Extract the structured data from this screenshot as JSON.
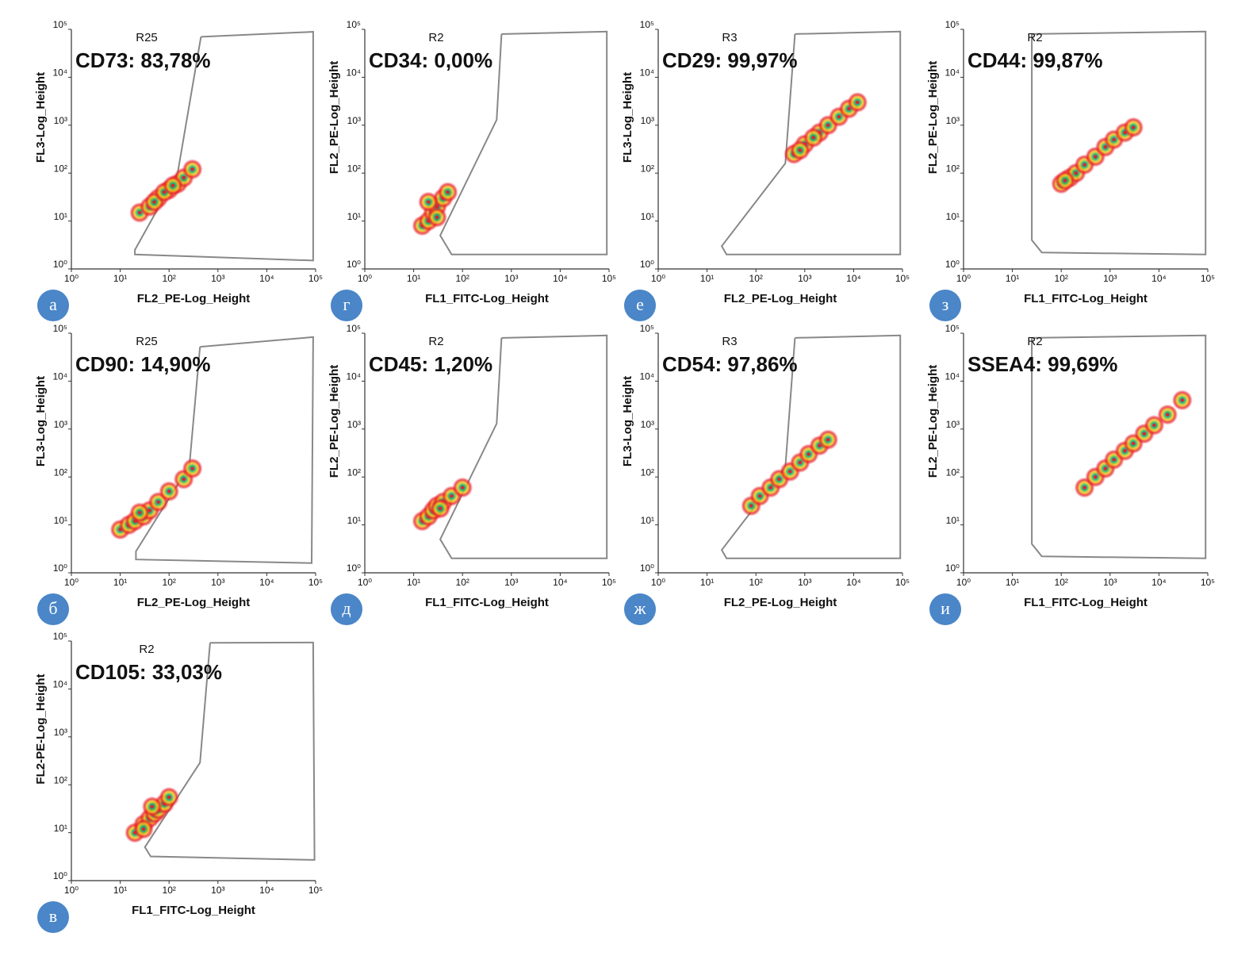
{
  "chart_data": [
    {
      "type": "scatter",
      "panel_label": "а",
      "gate_label": "R25",
      "annotation": "CD73: 83,78%",
      "x_label": "FL2_PE-Log_Height",
      "y_label": "FL3-Log_Height",
      "log_scale": true,
      "color": "#e8202a",
      "x": [
        25,
        40,
        60,
        100,
        150,
        200,
        300,
        50,
        80,
        120
      ],
      "values": [
        15,
        20,
        30,
        45,
        60,
        80,
        120,
        25,
        40,
        55
      ],
      "gate_x": [
        450,
        89000,
        89000,
        20,
        20,
        150,
        450
      ],
      "gate_y": [
        70000,
        89000,
        1.5,
        2,
        2.5,
        100,
        70000
      ],
      "xlim": [
        1,
        100000
      ],
      "ylim": [
        1,
        100000
      ],
      "xticks": [
        {
          "value": 1,
          "label": "10⁰"
        },
        {
          "value": 10,
          "label": "10¹"
        },
        {
          "value": 100,
          "label": "10²"
        },
        {
          "value": 1000,
          "label": "10³"
        },
        {
          "value": 10000,
          "label": "10⁴"
        },
        {
          "value": 100000,
          "label": "10⁵"
        }
      ],
      "yticks": [
        {
          "value": 1,
          "label": "10⁰"
        },
        {
          "value": 10,
          "label": "10¹"
        },
        {
          "value": 100,
          "label": "10²"
        },
        {
          "value": 1000,
          "label": "10³"
        },
        {
          "value": 10000,
          "label": "10⁴"
        },
        {
          "value": 100000,
          "label": "10⁵"
        }
      ]
    },
    {
      "type": "scatter",
      "panel_label": "г",
      "gate_label": "R2",
      "annotation": "CD34: 0,00%",
      "x_label": "FL1_FITC-Log_Height",
      "y_label": "FL2_PE-Log_Height",
      "log_scale": true,
      "color": "#e8202a",
      "x": [
        15,
        20,
        25,
        30,
        40,
        50,
        20,
        30
      ],
      "values": [
        8,
        10,
        15,
        20,
        30,
        40,
        25,
        12
      ],
      "gate_x": [
        630,
        90000,
        90000,
        60,
        35,
        500,
        630
      ],
      "gate_y": [
        80000,
        90000,
        2,
        2,
        5,
        1300,
        80000
      ],
      "xlim": [
        1,
        100000
      ],
      "ylim": [
        1,
        100000
      ],
      "xticks": [
        {
          "value": 1,
          "label": "10⁰"
        },
        {
          "value": 10,
          "label": "10¹"
        },
        {
          "value": 100,
          "label": "10²"
        },
        {
          "value": 1000,
          "label": "10³"
        },
        {
          "value": 10000,
          "label": "10⁴"
        },
        {
          "value": 100000,
          "label": "10⁵"
        }
      ],
      "yticks": [
        {
          "value": 1,
          "label": "10⁰"
        },
        {
          "value": 10,
          "label": "10¹"
        },
        {
          "value": 100,
          "label": "10²"
        },
        {
          "value": 1000,
          "label": "10³"
        },
        {
          "value": 10000,
          "label": "10⁴"
        },
        {
          "value": 100000,
          "label": "10⁵"
        }
      ]
    },
    {
      "type": "scatter",
      "panel_label": "е",
      "gate_label": "R3",
      "annotation": "CD29: 99,97%",
      "x_label": "FL2_PE-Log_Height",
      "y_label": "FL3-Log_Height",
      "log_scale": true,
      "color": "#e8202a",
      "x": [
        600,
        1000,
        2000,
        3000,
        5000,
        8000,
        12000,
        800,
        1500
      ],
      "values": [
        250,
        400,
        700,
        1000,
        1500,
        2200,
        3000,
        300,
        550
      ],
      "gate_x": [
        630,
        90000,
        90000,
        25,
        20,
        400,
        630
      ],
      "gate_y": [
        80000,
        90000,
        2,
        2,
        3,
        160,
        80000
      ],
      "xlim": [
        1,
        100000
      ],
      "ylim": [
        1,
        100000
      ],
      "xticks": [
        {
          "value": 1,
          "label": "10⁰"
        },
        {
          "value": 10,
          "label": "10¹"
        },
        {
          "value": 100,
          "label": "10²"
        },
        {
          "value": 1000,
          "label": "10³"
        },
        {
          "value": 10000,
          "label": "10⁴"
        },
        {
          "value": 100000,
          "label": "10⁵"
        }
      ],
      "yticks": [
        {
          "value": 1,
          "label": "10⁰"
        },
        {
          "value": 10,
          "label": "10¹"
        },
        {
          "value": 100,
          "label": "10²"
        },
        {
          "value": 1000,
          "label": "10³"
        },
        {
          "value": 10000,
          "label": "10⁴"
        },
        {
          "value": 100000,
          "label": "10⁵"
        }
      ]
    },
    {
      "type": "scatter",
      "panel_label": "з",
      "gate_label": "R2",
      "annotation": "CD44: 99,87%",
      "x_label": "FL1_FITC-Log_Height",
      "y_label": "FL2_PE-Log_Height",
      "log_scale": true,
      "color": "#e8202a",
      "x": [
        100,
        150,
        200,
        300,
        500,
        800,
        1200,
        2000,
        3000,
        120
      ],
      "values": [
        60,
        80,
        100,
        150,
        220,
        350,
        500,
        700,
        900,
        70
      ],
      "gate_x": [
        25,
        90000,
        90000,
        40,
        25,
        25,
        25
      ],
      "gate_y": [
        80000,
        90000,
        2,
        2.2,
        4,
        1000,
        80000
      ],
      "xlim": [
        1,
        100000
      ],
      "ylim": [
        1,
        100000
      ],
      "xticks": [
        {
          "value": 1,
          "label": "10⁰"
        },
        {
          "value": 10,
          "label": "10¹"
        },
        {
          "value": 100,
          "label": "10²"
        },
        {
          "value": 1000,
          "label": "10³"
        },
        {
          "value": 10000,
          "label": "10⁴"
        },
        {
          "value": 100000,
          "label": "10⁵"
        }
      ],
      "yticks": [
        {
          "value": 1,
          "label": "10⁰"
        },
        {
          "value": 10,
          "label": "10¹"
        },
        {
          "value": 100,
          "label": "10²"
        },
        {
          "value": 1000,
          "label": "10³"
        },
        {
          "value": 10000,
          "label": "10⁴"
        },
        {
          "value": 100000,
          "label": "10⁵"
        }
      ]
    },
    {
      "type": "scatter",
      "panel_label": "б",
      "gate_label": "R25",
      "annotation": "CD90: 14,90%",
      "x_label": "FL2_PE-Log_Height",
      "y_label": "FL3-Log_Height",
      "log_scale": true,
      "color": "#e8202a",
      "x": [
        10,
        15,
        20,
        30,
        40,
        60,
        100,
        200,
        300,
        25
      ],
      "values": [
        8,
        10,
        12,
        15,
        20,
        30,
        50,
        90,
        150,
        18
      ],
      "gate_x": [
        430,
        89000,
        83000,
        21,
        21,
        260,
        430
      ],
      "gate_y": [
        52000,
        83000,
        1.6,
        1.9,
        2.8,
        170,
        52000
      ],
      "xlim": [
        1,
        100000
      ],
      "ylim": [
        1,
        100000
      ],
      "xticks": [
        {
          "value": 1,
          "label": "10⁰"
        },
        {
          "value": 10,
          "label": "10¹"
        },
        {
          "value": 100,
          "label": "10²"
        },
        {
          "value": 1000,
          "label": "10³"
        },
        {
          "value": 10000,
          "label": "10⁴"
        },
        {
          "value": 100000,
          "label": "10⁵"
        }
      ],
      "yticks": [
        {
          "value": 1,
          "label": "10⁰"
        },
        {
          "value": 10,
          "label": "10¹"
        },
        {
          "value": 100,
          "label": "10²"
        },
        {
          "value": 1000,
          "label": "10³"
        },
        {
          "value": 10000,
          "label": "10⁴"
        },
        {
          "value": 100000,
          "label": "10⁵"
        }
      ]
    },
    {
      "type": "scatter",
      "panel_label": "д",
      "gate_label": "R2",
      "annotation": "CD45: 1,20%",
      "x_label": "FL1_FITC-Log_Height",
      "y_label": "FL2_PE-Log_Height",
      "log_scale": true,
      "color": "#e8202a",
      "x": [
        15,
        20,
        25,
        30,
        40,
        60,
        100,
        35
      ],
      "values": [
        12,
        15,
        20,
        25,
        30,
        40,
        60,
        22
      ],
      "gate_x": [
        630,
        90000,
        90000,
        60,
        35,
        500,
        630
      ],
      "gate_y": [
        80000,
        90000,
        2,
        2,
        5,
        1300,
        80000
      ],
      "xlim": [
        1,
        100000
      ],
      "ylim": [
        1,
        100000
      ],
      "xticks": [
        {
          "value": 1,
          "label": "10⁰"
        },
        {
          "value": 10,
          "label": "10¹"
        },
        {
          "value": 100,
          "label": "10²"
        },
        {
          "value": 1000,
          "label": "10³"
        },
        {
          "value": 10000,
          "label": "10⁴"
        },
        {
          "value": 100000,
          "label": "10⁵"
        }
      ],
      "yticks": [
        {
          "value": 1,
          "label": "10⁰"
        },
        {
          "value": 10,
          "label": "10¹"
        },
        {
          "value": 100,
          "label": "10²"
        },
        {
          "value": 1000,
          "label": "10³"
        },
        {
          "value": 10000,
          "label": "10⁴"
        },
        {
          "value": 100000,
          "label": "10⁵"
        }
      ]
    },
    {
      "type": "scatter",
      "panel_label": "ж",
      "gate_label": "R3",
      "annotation": "CD54: 97,86%",
      "x_label": "FL2_PE-Log_Height",
      "y_label": "FL3-Log_Height",
      "log_scale": true,
      "color": "#e8202a",
      "x": [
        80,
        120,
        200,
        300,
        500,
        800,
        1200,
        2000,
        3000
      ],
      "values": [
        25,
        40,
        60,
        90,
        130,
        200,
        300,
        450,
        600
      ],
      "gate_x": [
        630,
        90000,
        90000,
        25,
        20,
        400,
        630
      ],
      "gate_y": [
        80000,
        90000,
        2,
        2,
        3,
        160,
        80000
      ],
      "xlim": [
        1,
        100000
      ],
      "ylim": [
        1,
        100000
      ],
      "xticks": [
        {
          "value": 1,
          "label": "10⁰"
        },
        {
          "value": 10,
          "label": "10¹"
        },
        {
          "value": 100,
          "label": "10²"
        },
        {
          "value": 1000,
          "label": "10³"
        },
        {
          "value": 10000,
          "label": "10⁴"
        },
        {
          "value": 100000,
          "label": "10⁵"
        }
      ],
      "yticks": [
        {
          "value": 1,
          "label": "10⁰"
        },
        {
          "value": 10,
          "label": "10¹"
        },
        {
          "value": 100,
          "label": "10²"
        },
        {
          "value": 1000,
          "label": "10³"
        },
        {
          "value": 10000,
          "label": "10⁴"
        },
        {
          "value": 100000,
          "label": "10⁵"
        }
      ]
    },
    {
      "type": "scatter",
      "panel_label": "и",
      "gate_label": "R2",
      "annotation": "SSEA4: 99,69%",
      "x_label": "FL1_FITC-Log_Height",
      "y_label": "FL2_PE-Log_Height",
      "log_scale": true,
      "color": "#e8202a",
      "x": [
        300,
        500,
        800,
        1200,
        2000,
        3000,
        5000,
        8000,
        15000,
        30000
      ],
      "values": [
        60,
        100,
        150,
        230,
        350,
        500,
        800,
        1200,
        2000,
        4000
      ],
      "gate_x": [
        25,
        90000,
        90000,
        40,
        25,
        25,
        25
      ],
      "gate_y": [
        80000,
        90000,
        2,
        2.2,
        4,
        1000,
        80000
      ],
      "xlim": [
        1,
        100000
      ],
      "ylim": [
        1,
        100000
      ],
      "xticks": [
        {
          "value": 1,
          "label": "10⁰"
        },
        {
          "value": 10,
          "label": "10¹"
        },
        {
          "value": 100,
          "label": "10²"
        },
        {
          "value": 1000,
          "label": "10³"
        },
        {
          "value": 10000,
          "label": "10⁴"
        },
        {
          "value": 100000,
          "label": "10⁵"
        }
      ],
      "yticks": [
        {
          "value": 1,
          "label": "10⁰"
        },
        {
          "value": 10,
          "label": "10¹"
        },
        {
          "value": 100,
          "label": "10²"
        },
        {
          "value": 1000,
          "label": "10³"
        },
        {
          "value": 10000,
          "label": "10⁴"
        },
        {
          "value": 100000,
          "label": "10⁵"
        }
      ]
    },
    {
      "type": "scatter",
      "panel_label": "в",
      "gate_label": "R2",
      "annotation": "CD105: 33,03%",
      "x_label": "FL1_FITC-Log_Height",
      "y_label": "FL2-PE-Log_Height",
      "log_scale": true,
      "color": "#e8202a",
      "x": [
        20,
        30,
        40,
        50,
        60,
        80,
        100,
        30,
        45
      ],
      "values": [
        10,
        15,
        20,
        25,
        30,
        40,
        55,
        12,
        35
      ],
      "gate_x": [
        690,
        89000,
        95000,
        42,
        32,
        430,
        690
      ],
      "gate_y": [
        92000,
        93000,
        2.7,
        3.2,
        5,
        290,
        92000
      ],
      "xlim": [
        1,
        100000
      ],
      "ylim": [
        1,
        100000
      ],
      "xticks": [
        {
          "value": 1,
          "label": "10⁰"
        },
        {
          "value": 10,
          "label": "10¹"
        },
        {
          "value": 100,
          "label": "10²"
        },
        {
          "value": 1000,
          "label": "10³"
        },
        {
          "value": 10000,
          "label": "10⁴"
        },
        {
          "value": 100000,
          "label": "10⁵"
        }
      ],
      "yticks": [
        {
          "value": 1,
          "label": "10⁰"
        },
        {
          "value": 10,
          "label": "10¹"
        },
        {
          "value": 100,
          "label": "10²"
        },
        {
          "value": 1000,
          "label": "10³"
        },
        {
          "value": 10000,
          "label": "10⁴"
        },
        {
          "value": 100000,
          "label": "10⁵"
        }
      ]
    }
  ]
}
